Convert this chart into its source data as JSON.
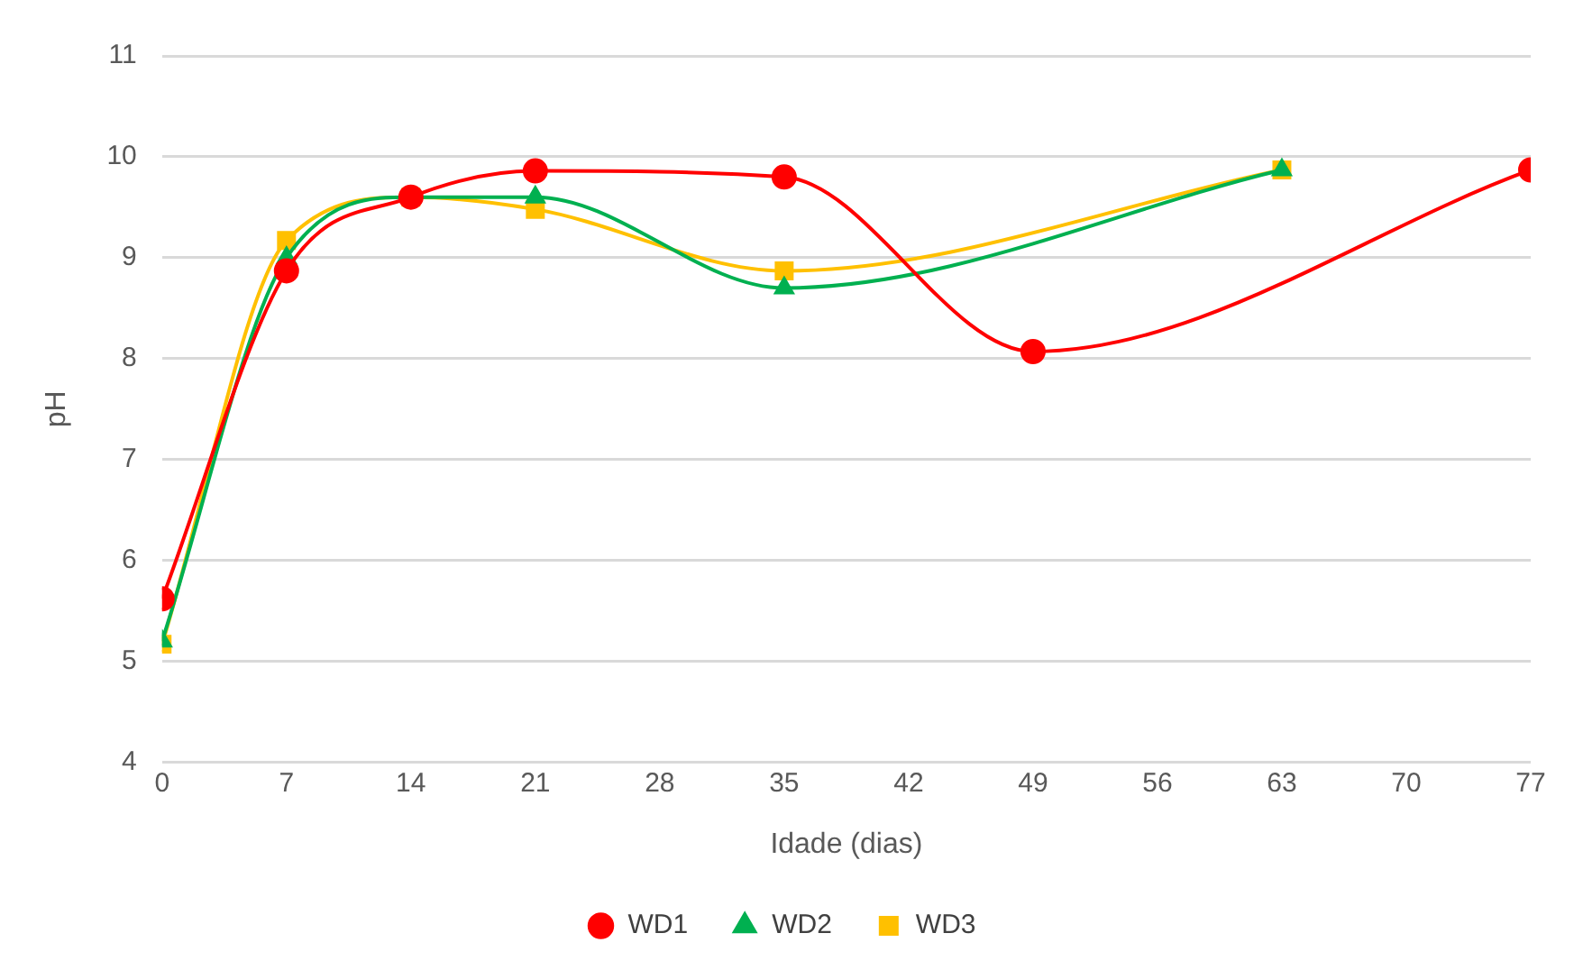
{
  "chart_data": {
    "type": "line",
    "xlabel": "Idade (dias)",
    "ylabel": "pH",
    "xlim": [
      0,
      77
    ],
    "xticks": [
      0,
      7,
      14,
      21,
      28,
      35,
      42,
      49,
      56,
      63,
      70,
      77
    ],
    "ylim": [
      4,
      11
    ],
    "yticks": [
      4,
      5,
      6,
      7,
      8,
      9,
      10,
      11
    ],
    "grid": "y",
    "legend": "bottom",
    "series": [
      {
        "name": "WD1",
        "color": "#ff0000",
        "marker": "circle",
        "x": [
          0,
          7,
          14,
          21,
          35,
          49,
          77
        ],
        "values": [
          5.62,
          8.87,
          9.6,
          9.86,
          9.8,
          8.07,
          9.87
        ]
      },
      {
        "name": "WD2",
        "color": "#00b050",
        "marker": "triangle",
        "x": [
          0,
          7,
          14,
          21,
          35,
          63
        ],
        "values": [
          5.2,
          9.0,
          9.6,
          9.6,
          8.7,
          9.87
        ]
      },
      {
        "name": "WD3",
        "color": "#ffc000",
        "marker": "square",
        "x": [
          0,
          7,
          14,
          21,
          35,
          63
        ],
        "values": [
          5.17,
          9.17,
          9.6,
          9.48,
          8.87,
          9.87
        ]
      }
    ]
  }
}
